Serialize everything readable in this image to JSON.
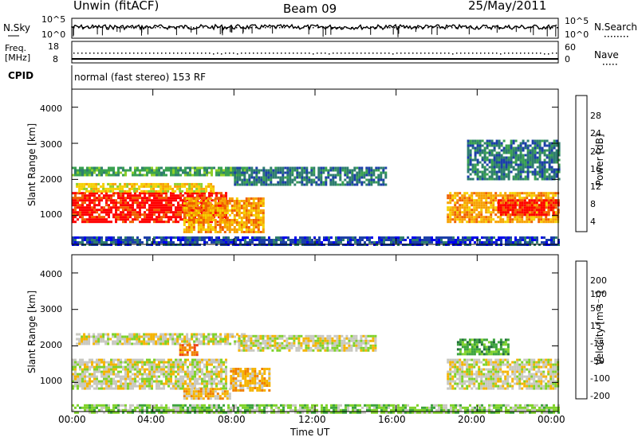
{
  "header": {
    "station": "Unwin (fitACF)",
    "beam": "Beam 09",
    "date": "25/May/2011"
  },
  "top_panels": {
    "nsky_label": "N.Sky",
    "nsearch_label": "N.Search",
    "noise_ticks_left": [
      "10^5",
      "10^0"
    ],
    "noise_ticks_right": [
      "10^5",
      "10^0"
    ],
    "freq_label": "Freq.",
    "freq_unit": "[MHz]",
    "freq_ticks": [
      "18",
      "8"
    ],
    "nave_label": "Nave",
    "nave_ticks": [
      "60",
      "0"
    ],
    "cpid_label": "CPID",
    "cpid_text": "normal (fast stereo) 153 RF"
  },
  "colors": {
    "power": [
      "#0000ee",
      "#1c3fa8",
      "#2e7d6e",
      "#3aa150",
      "#8fcf2a",
      "#f5d000",
      "#f7a100",
      "#f06000",
      "#ff0000"
    ],
    "velocity": [
      "#1010d8",
      "#1f6b3a",
      "#3ca43c",
      "#7fd22a",
      "#c8c8c0",
      "#f5b400",
      "#f08000",
      "#f04010",
      "#e00000"
    ]
  },
  "chart_data": [
    {
      "type": "heatmap",
      "name": "power",
      "ylabel": "Slant Range [km]",
      "yticks": [
        "1000",
        "2000",
        "3000",
        "4000"
      ],
      "ylim": [
        200,
        4500
      ],
      "x_range": [
        "00:00",
        "24:00"
      ],
      "colorbar_label": "Power [dB]",
      "colorbar_ticks": [
        "4",
        "8",
        "12",
        "16",
        "20",
        "24",
        "28"
      ],
      "regions": [
        {
          "t0": 0.0,
          "t1": 7.6,
          "r0": 850,
          "r1": 1650,
          "level": 8
        },
        {
          "t0": 0.2,
          "t1": 7.0,
          "r0": 1700,
          "r1": 1900,
          "level": 5
        },
        {
          "t0": 0.0,
          "t1": 8.5,
          "r0": 2150,
          "r1": 2350,
          "level": 3
        },
        {
          "t0": 5.5,
          "t1": 9.5,
          "r0": 550,
          "r1": 1500,
          "level": 6
        },
        {
          "t0": 8.0,
          "t1": 15.5,
          "r0": 1850,
          "r1": 2350,
          "level": 2
        },
        {
          "t0": 18.5,
          "t1": 24.0,
          "r0": 850,
          "r1": 1650,
          "level": 6
        },
        {
          "t0": 21.0,
          "t1": 24.0,
          "r0": 1000,
          "r1": 1450,
          "level": 8
        },
        {
          "t0": 19.5,
          "t1": 24.0,
          "r0": 2000,
          "r1": 3100,
          "level": 2
        },
        {
          "t0": 0.0,
          "t1": 24.0,
          "r0": 180,
          "r1": 420,
          "level": 1
        }
      ]
    },
    {
      "type": "heatmap",
      "name": "velocity",
      "ylabel": "Slant Range [km]",
      "yticks": [
        "1000",
        "2000",
        "3000",
        "4000"
      ],
      "ylim": [
        200,
        4500
      ],
      "x_range": [
        "00:00",
        "24:00"
      ],
      "colorbar_label": "Velocity [m s⁻¹]",
      "colorbar_ticks": [
        "200",
        "100",
        "50",
        "15",
        "-15",
        "-50",
        "-100",
        "-200"
      ],
      "regions": [
        {
          "t0": 0.0,
          "t1": 7.6,
          "r0": 850,
          "r1": 1650,
          "level": 4
        },
        {
          "t0": 0.2,
          "t1": 8.5,
          "r0": 2050,
          "r1": 2350,
          "level": 4
        },
        {
          "t0": 7.8,
          "t1": 9.8,
          "r0": 800,
          "r1": 1400,
          "level": 5
        },
        {
          "t0": 5.5,
          "t1": 7.8,
          "r0": 550,
          "r1": 850,
          "level": 5
        },
        {
          "t0": 5.3,
          "t1": 6.2,
          "r0": 1750,
          "r1": 2050,
          "level": 6
        },
        {
          "t0": 8.2,
          "t1": 15.0,
          "r0": 1900,
          "r1": 2300,
          "level": 4
        },
        {
          "t0": 18.5,
          "t1": 24.0,
          "r0": 850,
          "r1": 1650,
          "level": 4
        },
        {
          "t0": 19.0,
          "t1": 21.5,
          "r0": 1800,
          "r1": 2200,
          "level": 2
        },
        {
          "t0": 0.0,
          "t1": 24.0,
          "r0": 200,
          "r1": 400,
          "level": 3
        }
      ]
    }
  ],
  "x_axis": {
    "ticks": [
      "00:00",
      "04:00",
      "08:00",
      "12:00",
      "16:00",
      "20:00",
      "00:00"
    ],
    "label": "Time UT"
  }
}
